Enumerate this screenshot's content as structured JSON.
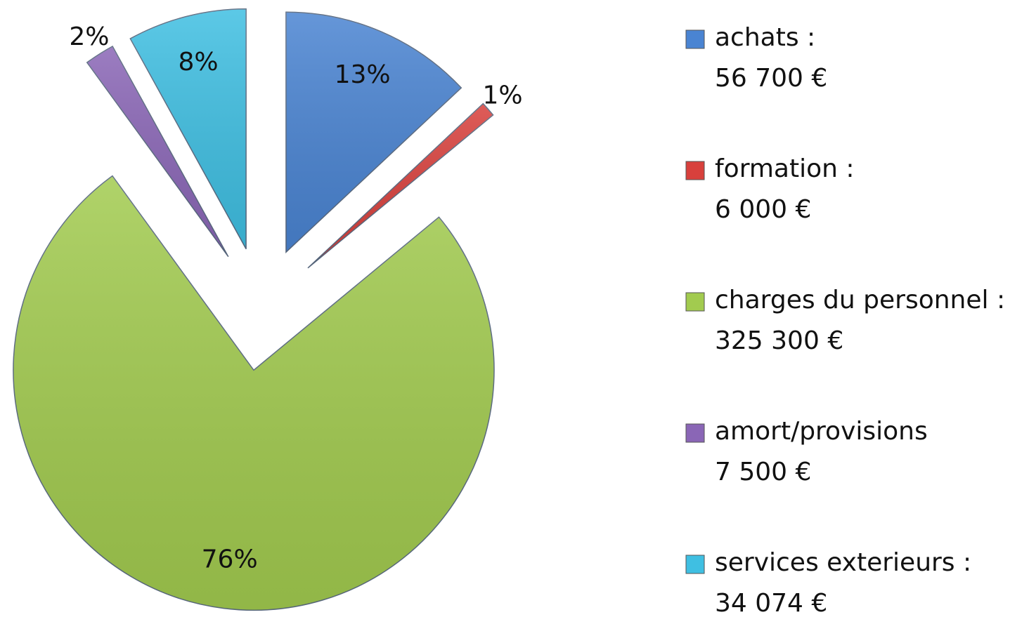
{
  "chart_data": {
    "type": "pie",
    "categories": [
      "achats :",
      "formation :",
      "charges du personnel :",
      "amort/provisions",
      "services exterieurs :"
    ],
    "amounts": [
      "56 700 €",
      "6 000  €",
      "325 300 €",
      "7 500 €",
      "34 074 €"
    ],
    "values": [
      13,
      1,
      76,
      2,
      8
    ],
    "value_labels": [
      "13%",
      "1%",
      "76%",
      "2%",
      "8%"
    ],
    "colors": [
      "#4a84d2",
      "#d8403c",
      "#a2cb4f",
      "#8a66b6",
      "#3fbfe2"
    ],
    "legend": "right"
  }
}
